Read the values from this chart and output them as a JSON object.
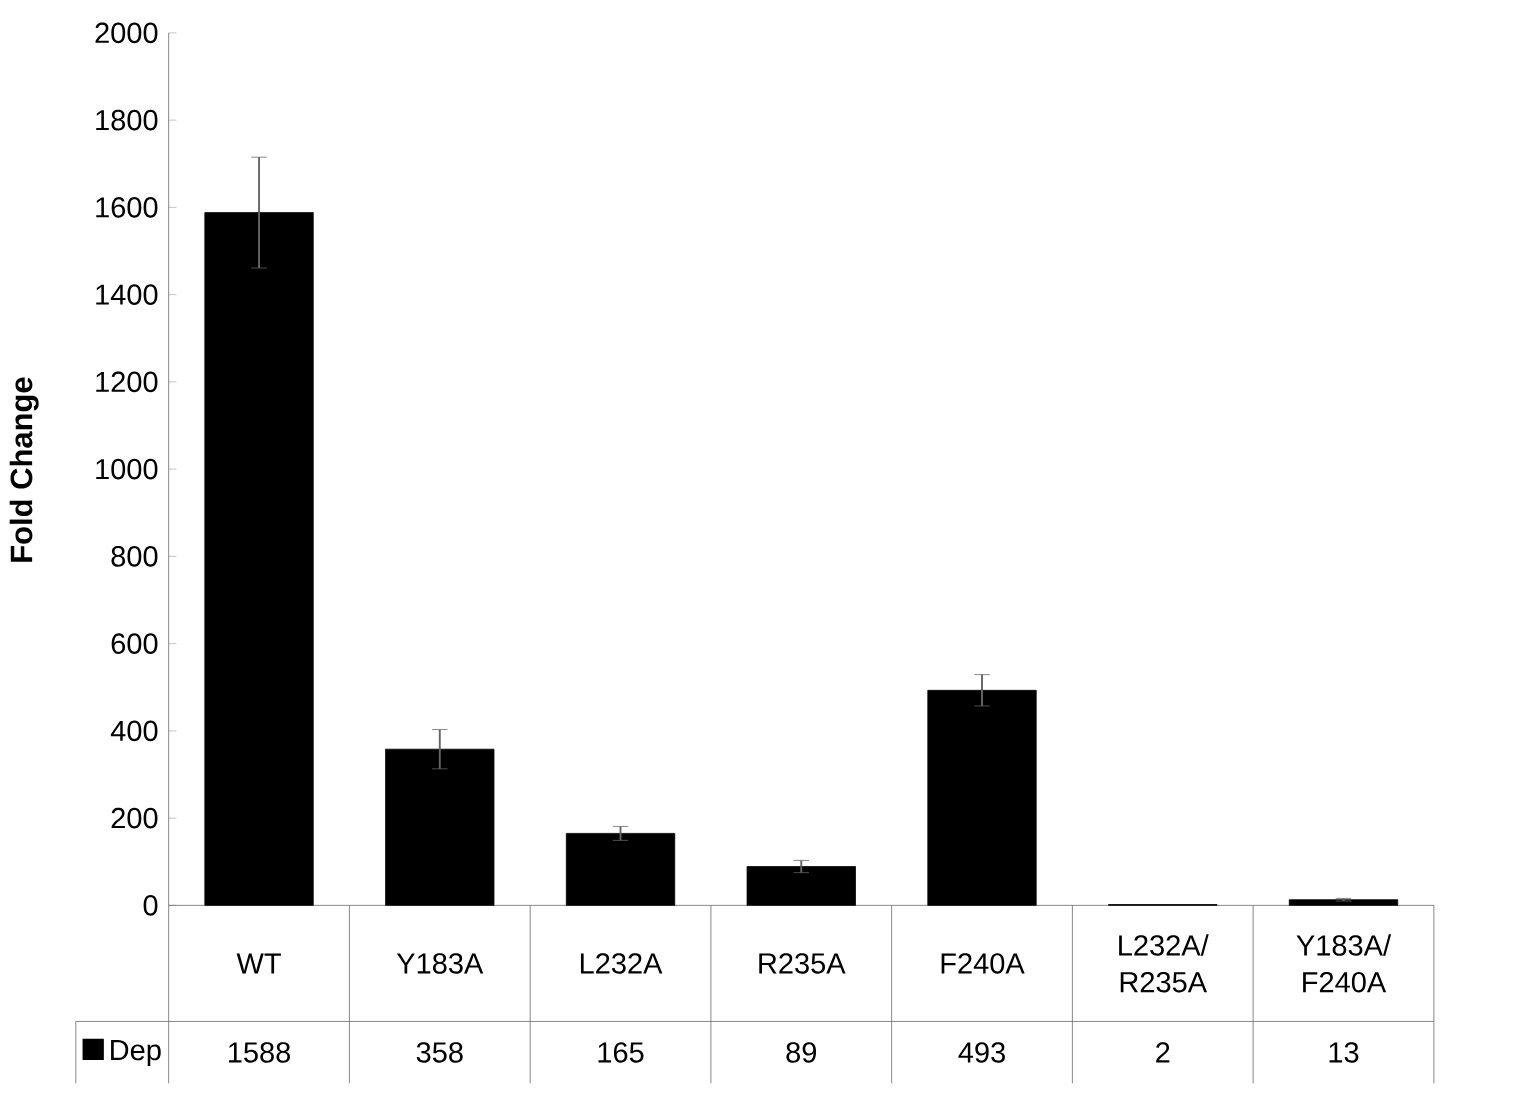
{
  "chart_data": {
    "type": "bar",
    "ylabel": "Fold Change",
    "categories": [
      "WT",
      "Y183A",
      "L232A",
      "R235A",
      "F240A",
      "L232A/R235A",
      "Y183A/F240A"
    ],
    "series": [
      {
        "name": "Dep",
        "color": "#000000",
        "values": [
          1588,
          358,
          165,
          89,
          493,
          2,
          13
        ],
        "errors": [
          127,
          45,
          16,
          14,
          36,
          null,
          3
        ]
      }
    ],
    "ylim": [
      0,
      2000
    ],
    "yticks": [
      0,
      200,
      400,
      600,
      800,
      1000,
      1200,
      1400,
      1600,
      1800,
      2000
    ],
    "data_labels": true,
    "legend": "bottom",
    "grid": false
  }
}
